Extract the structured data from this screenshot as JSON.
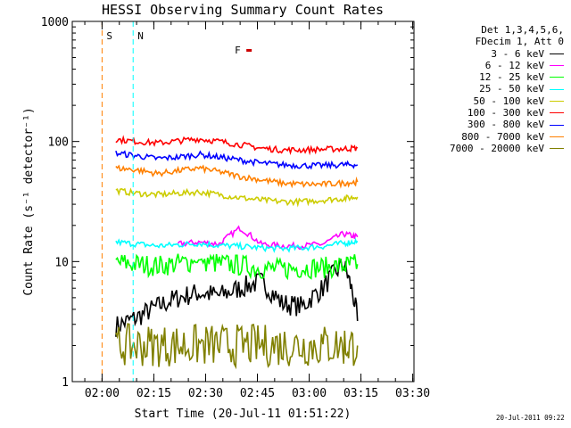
{
  "chart_data": {
    "type": "line",
    "title": "HESSI Observing Summary Count Rates",
    "xlabel": "Start Time (20-Jul-11 01:51:22)",
    "ylabel": "Count Rate (s⁻¹ detector⁻¹)",
    "x_start": "01:51:22",
    "xlim": [
      "01:51:22",
      "03:30:22"
    ],
    "ylim": [
      1,
      1000
    ],
    "yscale": "log",
    "x_ticks": [
      "02:00",
      "02:15",
      "02:30",
      "02:45",
      "03:00",
      "03:15",
      "03:30"
    ],
    "y_ticks": [
      "1",
      "10",
      "100",
      "1000"
    ],
    "legend_header": [
      "Det 1,3,4,5,6,",
      "FDecim 1, Att 0"
    ],
    "legend_position": "right",
    "x": [
      "02:04",
      "02:10",
      "02:16",
      "02:22",
      "02:28",
      "02:34",
      "02:40",
      "02:46",
      "02:52",
      "02:58",
      "03:04",
      "03:10",
      "03:14"
    ],
    "series": [
      {
        "name": "3 - 6 keV",
        "color": "#000000",
        "values": [
          2.9,
          3.4,
          4.2,
          5.0,
          5.5,
          5.2,
          6.0,
          6.8,
          4.5,
          4.2,
          6.0,
          9.5,
          3.2
        ]
      },
      {
        "name": "6 - 12 keV",
        "color": "#ff00ff",
        "values": [
          null,
          null,
          null,
          14,
          14.5,
          14,
          19,
          14,
          13.5,
          13.5,
          14,
          17,
          16
        ]
      },
      {
        "name": "12 - 25 keV",
        "color": "#00ff00",
        "values": [
          9.8,
          9.5,
          9.2,
          9.6,
          10.2,
          9.6,
          9.3,
          8.8,
          8.6,
          8.9,
          8.9,
          9.2,
          9.5
        ]
      },
      {
        "name": "25 - 50 keV",
        "color": "#00ffff",
        "values": [
          14.5,
          14.0,
          13.5,
          13.8,
          14.2,
          13.6,
          13.4,
          13.0,
          12.8,
          13.0,
          13.4,
          14.2,
          14.8
        ]
      },
      {
        "name": "50 - 100 keV",
        "color": "#cccc00",
        "values": [
          39,
          37,
          36,
          37,
          38,
          36,
          34,
          32.5,
          31.5,
          31.5,
          32.5,
          33.5,
          34.5
        ]
      },
      {
        "name": "100 - 300 keV",
        "color": "#ff0000",
        "values": [
          104,
          100,
          97,
          101,
          105,
          100,
          94,
          88,
          85,
          85,
          86,
          87,
          88
        ]
      },
      {
        "name": "300 - 800 keV",
        "color": "#0000ff",
        "values": [
          80,
          76,
          72,
          74,
          78,
          74,
          70,
          66,
          64,
          63,
          63,
          64,
          64
        ]
      },
      {
        "name": "800 - 7000 keV",
        "color": "#ff8000",
        "values": [
          60,
          58,
          54,
          57,
          60,
          56,
          51,
          48,
          45,
          44,
          44,
          45,
          46
        ]
      },
      {
        "name": "7000 - 20000 keV",
        "color": "#808000",
        "values": [
          2.0,
          2.0,
          2.0,
          2.0,
          2.0,
          2.0,
          2.0,
          2.0,
          2.0,
          2.0,
          2.0,
          2.0,
          2.0
        ]
      }
    ],
    "annotations": [
      {
        "label": "S",
        "color": "#ff8000",
        "x": "02:00"
      },
      {
        "label": "N",
        "color": "#00ffff",
        "x": "02:09"
      },
      {
        "label": "F",
        "color": "#cc0000",
        "x": "02:40"
      }
    ],
    "timestamp": "20-Jul-2011 09:22"
  }
}
